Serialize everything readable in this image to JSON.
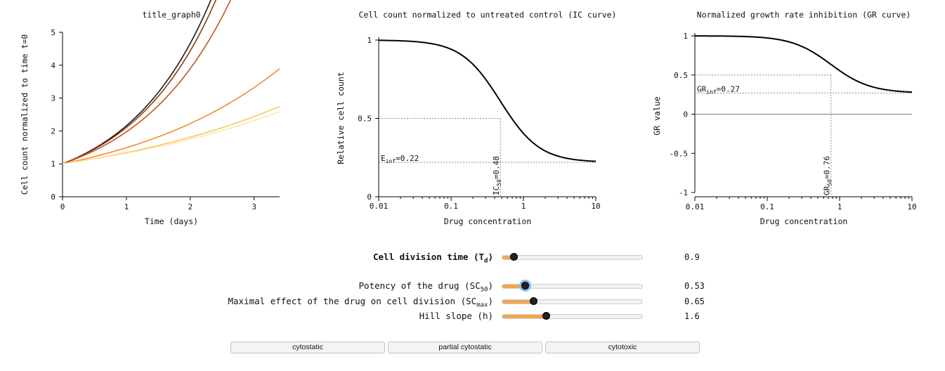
{
  "chart_data": [
    {
      "type": "line",
      "title": "title_graph0",
      "xlabel": "Time (days)",
      "ylabel": "Cell count normalized to time t=0",
      "xlim": [
        0,
        3.4
      ],
      "ylim": [
        0,
        5
      ],
      "x_ticks": [
        "0",
        "1",
        "2",
        "3"
      ],
      "y_ticks": [
        "0",
        "1",
        "2",
        "3",
        "4",
        "5"
      ],
      "series": [
        {
          "name": "c0",
          "color": "#1a1a1a",
          "growth_rate": 0.77
        },
        {
          "name": "c1",
          "color": "#8a3a0c",
          "growth_rate": 0.745
        },
        {
          "name": "c2",
          "color": "#c9511a",
          "growth_rate": 0.68
        },
        {
          "name": "c3",
          "color": "#f08c2e",
          "growth_rate": 0.4
        },
        {
          "name": "c4",
          "color": "#f9c56a",
          "growth_rate": 0.297
        },
        {
          "name": "c5",
          "color": "#fde7a8",
          "growth_rate": 0.28
        }
      ]
    },
    {
      "type": "line",
      "title": "Cell count normalized to untreated control (IC curve)",
      "xlabel": "Drug concentration",
      "ylabel": "Relative cell count",
      "xscale": "log",
      "xlim": [
        0.01,
        10
      ],
      "ylim": [
        0,
        1
      ],
      "x_ticks": [
        "0.01",
        "0.1",
        "1",
        "10"
      ],
      "y_ticks": [
        "0",
        "0.5",
        "1"
      ],
      "einf": 0.22,
      "ic50": 0.48,
      "hill": 1.6,
      "einf_label": "E",
      "einf_sub": "inf",
      "einf_value_text": "=0.22",
      "ic50_label": "IC",
      "ic50_sub": "50",
      "ic50_value_text": "=0.48"
    },
    {
      "type": "line",
      "title": "Normalized growth rate inhibition (GR curve)",
      "xlabel": "Drug concentration",
      "ylabel": "GR value",
      "xscale": "log",
      "xlim": [
        0.01,
        10
      ],
      "ylim": [
        -1,
        1
      ],
      "x_ticks": [
        "0.01",
        "0.1",
        "1",
        "10"
      ],
      "y_ticks": [
        "-1",
        "-0.5",
        "0",
        "0.5",
        "1"
      ],
      "grinf": 0.27,
      "gr50": 0.76,
      "hill": 1.6,
      "grinf_label": "GR",
      "grinf_sub": "inf",
      "grinf_value_text": "=0.27",
      "gr50_label": "GR",
      "gr50_sub": "50",
      "gr50_value_text": "=0.76"
    }
  ],
  "controls": [
    {
      "label": "Cell division time (T",
      "sub": "d",
      "suffix": ")",
      "value": "0.9",
      "fraction": 0.08,
      "bold": true
    },
    {
      "label": "Potency of the drug (SC",
      "sub": "50",
      "suffix": ")",
      "value": "0.53",
      "fraction": 0.16,
      "focus": true
    },
    {
      "label": "Maximal effect of the drug on cell division (SC",
      "sub": "max",
      "suffix": ")",
      "value": "0.65",
      "fraction": 0.22
    },
    {
      "label": "Hill slope (h)",
      "sub": "",
      "suffix": "",
      "value": "1.6",
      "fraction": 0.31
    }
  ],
  "buttons": [
    "cytostatic",
    "partial cytostatic",
    "cytotoxic"
  ]
}
